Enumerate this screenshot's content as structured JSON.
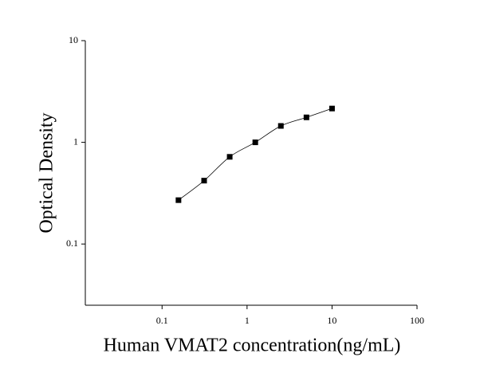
{
  "chart_data": {
    "type": "scatter",
    "xlabel": "Human VMAT2 concentration(ng/mL)",
    "ylabel": "Optical Density",
    "x": [
      0.156,
      0.3125,
      0.625,
      1.25,
      2.5,
      5,
      10
    ],
    "series": [
      {
        "color": "#000000",
        "values": [
          0.27,
          0.42,
          0.72,
          1.0,
          1.45,
          1.76,
          2.15
        ]
      }
    ],
    "fit_line": true,
    "xlog": true,
    "ylog": true,
    "xlim": [
      0.0125,
      100
    ],
    "ylim": [
      0.025,
      10
    ],
    "xticks": [
      0.1,
      1,
      10,
      100
    ],
    "yticks": [
      0.1,
      1,
      10
    ]
  }
}
